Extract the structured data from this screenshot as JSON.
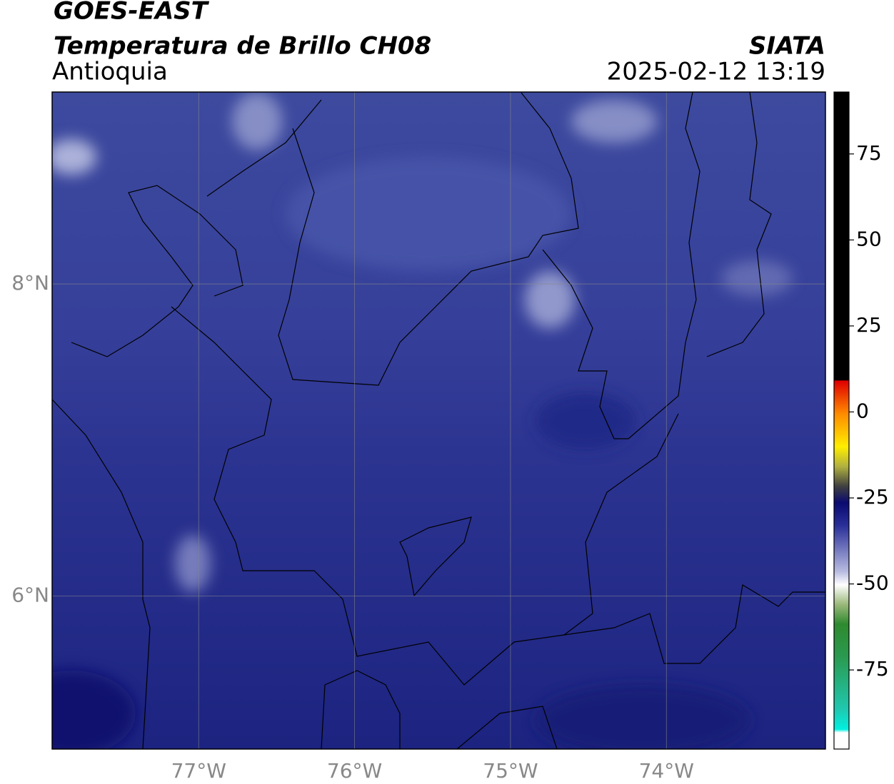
{
  "header": {
    "title": "GOES-EAST",
    "subtitle": "Temperatura de Brillo CH08",
    "region": "Antioquia",
    "source": "SIATA",
    "datetime": "2025-02-12 13:19"
  },
  "map": {
    "xlim": [
      -77.94,
      -72.98
    ],
    "ylim": [
      5.02,
      9.23
    ],
    "lon_ticks": [
      {
        "value": -77,
        "label": "77°W"
      },
      {
        "value": -76,
        "label": "76°W"
      },
      {
        "value": -75,
        "label": "75°W"
      },
      {
        "value": -74,
        "label": "74°W"
      }
    ],
    "lat_ticks": [
      {
        "value": 8,
        "label": "8°N"
      },
      {
        "value": 6,
        "label": "6°N"
      }
    ]
  },
  "colorbar": {
    "lim": [
      -98,
      93
    ],
    "ticks": [
      75,
      50,
      25,
      0,
      -25,
      -50,
      -75
    ]
  }
}
